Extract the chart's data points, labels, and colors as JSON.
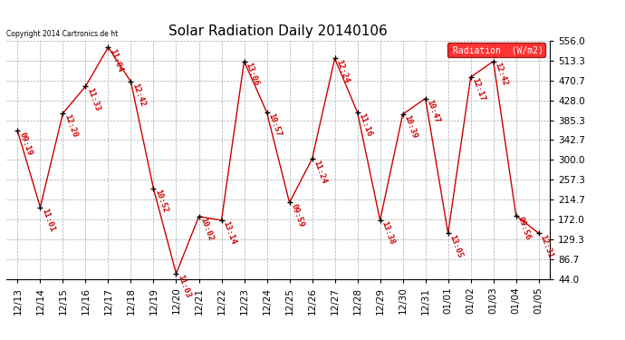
{
  "title": "Solar Radiation Daily 20140106",
  "copyright": "Copyright 2014 Cartronics.de ht",
  "legend_label": "Radiation  (W/m2)",
  "dates": [
    "12/13",
    "12/14",
    "12/15",
    "12/16",
    "12/17",
    "12/18",
    "12/19",
    "12/20",
    "12/21",
    "12/22",
    "12/23",
    "12/24",
    "12/25",
    "12/26",
    "12/27",
    "12/28",
    "12/29",
    "12/30",
    "12/31",
    "01/01",
    "01/02",
    "01/03",
    "01/04",
    "01/05"
  ],
  "values": [
    362,
    198,
    400,
    458,
    542,
    468,
    238,
    55,
    178,
    170,
    512,
    402,
    208,
    302,
    518,
    402,
    170,
    398,
    432,
    142,
    478,
    512,
    180,
    142
  ],
  "time_labels": [
    "09:19",
    "11:01",
    "12:20",
    "11:33",
    "11:04",
    "12:42",
    "10:52",
    "11:03",
    "10:02",
    "13:14",
    "13:06",
    "10:57",
    "09:59",
    "11:24",
    "12:24",
    "11:16",
    "13:38",
    "10:39",
    "10:47",
    "13:05",
    "12:17",
    "12:42",
    "09:56",
    "12:31"
  ],
  "ylim": [
    44.0,
    556.0
  ],
  "yticks": [
    44.0,
    86.7,
    129.3,
    172.0,
    214.7,
    257.3,
    300.0,
    342.7,
    385.3,
    428.0,
    470.7,
    513.3,
    556.0
  ],
  "line_color": "#cc0000",
  "marker_color": "#000000",
  "label_color": "#cc0000",
  "background_color": "#ffffff",
  "grid_color": "#aaaaaa",
  "title_fontsize": 11,
  "label_fontsize": 6.5,
  "tick_fontsize": 7.5,
  "figwidth": 6.9,
  "figheight": 3.75,
  "dpi": 100
}
